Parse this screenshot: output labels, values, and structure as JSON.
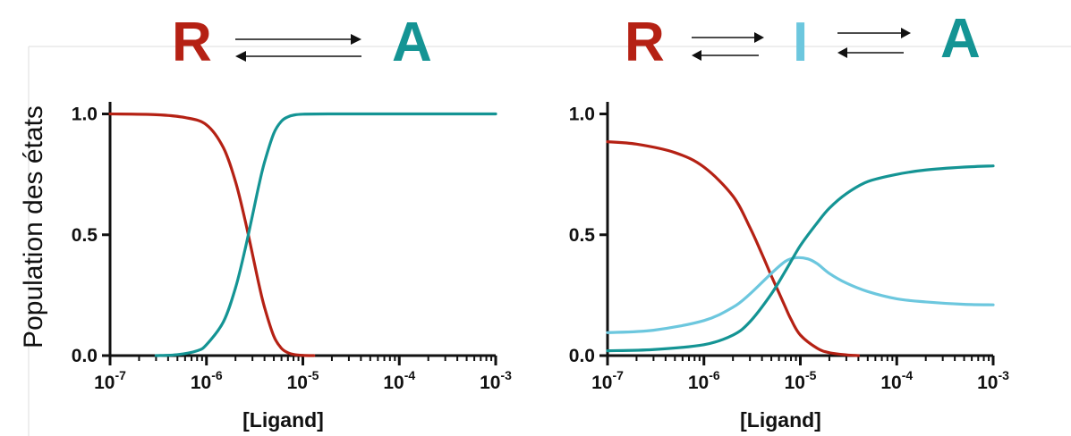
{
  "colors": {
    "R": "#b52114",
    "A": "#149494",
    "I": "#6cc7de",
    "axis": "#111111",
    "arrows": "#111111"
  },
  "ylabel": "Population des états",
  "schemes": [
    {
      "letters": [
        "R",
        "A"
      ]
    },
    {
      "letters": [
        "R",
        "I",
        "A"
      ]
    }
  ],
  "chart_data": [
    {
      "type": "line",
      "xscale": "log",
      "xlim": [
        1e-07,
        0.001
      ],
      "ylim": [
        0,
        1.05
      ],
      "xlabel": "[Ligand]",
      "ylabel": "Population des états",
      "xtick_labels": [
        {
          "base": "10",
          "exp": "-7"
        },
        {
          "base": "10",
          "exp": "-6"
        },
        {
          "base": "10",
          "exp": "-5"
        },
        {
          "base": "10",
          "exp": "-4"
        },
        {
          "base": "10",
          "exp": "-3"
        }
      ],
      "yticks": [
        "0.0",
        "0.5",
        "1.0"
      ],
      "series": [
        {
          "state": "R",
          "color": "#b52114",
          "x": [
            1e-07,
            3e-07,
            6e-07,
            1e-06,
            1.5e-06,
            2e-06,
            2.5e-06,
            3e-06,
            3.5e-06,
            4e-06,
            5e-06,
            6e-06,
            7e-06,
            8e-06,
            1e-05,
            1.3e-05
          ],
          "y": [
            1.0,
            0.997,
            0.985,
            0.955,
            0.86,
            0.72,
            0.565,
            0.42,
            0.295,
            0.2,
            0.08,
            0.03,
            0.012,
            0.005,
            0.001,
            0.0
          ]
        },
        {
          "state": "A",
          "color": "#149494",
          "x": [
            3e-07,
            5e-07,
            8e-07,
            1e-06,
            1.5e-06,
            2e-06,
            2.5e-06,
            3e-06,
            3.5e-06,
            4e-06,
            5e-06,
            6e-06,
            7e-06,
            8e-06,
            1e-05,
            2e-05,
            0.0001,
            0.001
          ],
          "y": [
            0.0,
            0.004,
            0.02,
            0.045,
            0.14,
            0.28,
            0.435,
            0.58,
            0.705,
            0.8,
            0.92,
            0.97,
            0.988,
            0.995,
            0.999,
            1.0,
            1.0,
            1.0
          ]
        }
      ]
    },
    {
      "type": "line",
      "xscale": "log",
      "xlim": [
        1e-07,
        0.001
      ],
      "ylim": [
        0,
        1.05
      ],
      "xlabel": "[Ligand]",
      "ylabel": "Population des états",
      "xtick_labels": [
        {
          "base": "10",
          "exp": "-7"
        },
        {
          "base": "10",
          "exp": "-6"
        },
        {
          "base": "10",
          "exp": "-5"
        },
        {
          "base": "10",
          "exp": "-4"
        },
        {
          "base": "10",
          "exp": "-3"
        }
      ],
      "yticks": [
        "0.0",
        "0.5",
        "1.0"
      ],
      "series": [
        {
          "state": "R",
          "color": "#b52114",
          "x": [
            1e-07,
            2e-07,
            5e-07,
            1e-06,
            2e-06,
            3e-06,
            4e-06,
            5e-06,
            6e-06,
            7e-06,
            8e-06,
            1e-05,
            1.5e-05,
            2e-05,
            3e-05,
            4e-05
          ],
          "y": [
            0.885,
            0.875,
            0.84,
            0.78,
            0.66,
            0.53,
            0.42,
            0.33,
            0.26,
            0.2,
            0.15,
            0.085,
            0.03,
            0.012,
            0.003,
            0.0
          ]
        },
        {
          "state": "I",
          "color": "#6cc7de",
          "x": [
            1e-07,
            3e-07,
            1e-06,
            2e-06,
            3e-06,
            5e-06,
            7e-06,
            9e-06,
            1.2e-05,
            1.5e-05,
            2e-05,
            3e-05,
            5e-05,
            0.0001,
            0.0002,
            0.0005,
            0.001
          ],
          "y": [
            0.095,
            0.105,
            0.145,
            0.2,
            0.255,
            0.34,
            0.39,
            0.405,
            0.4,
            0.38,
            0.34,
            0.3,
            0.265,
            0.235,
            0.222,
            0.212,
            0.21
          ]
        },
        {
          "state": "A",
          "color": "#149494",
          "x": [
            1e-07,
            3e-07,
            1e-06,
            2e-06,
            3e-06,
            5e-06,
            7e-06,
            1e-05,
            1.5e-05,
            2e-05,
            3e-05,
            5e-05,
            0.0001,
            0.0002,
            0.0005,
            0.001
          ],
          "y": [
            0.02,
            0.025,
            0.045,
            0.085,
            0.14,
            0.255,
            0.35,
            0.455,
            0.55,
            0.61,
            0.67,
            0.72,
            0.75,
            0.768,
            0.78,
            0.785
          ]
        }
      ]
    }
  ]
}
